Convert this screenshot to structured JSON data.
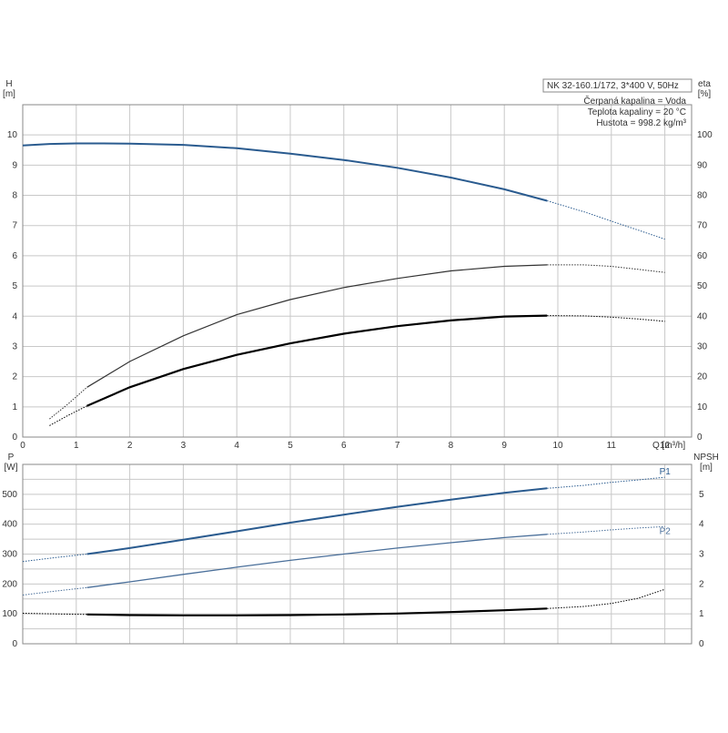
{
  "chart_data": [
    {
      "type": "line",
      "panel": "head-efficiency",
      "info_box": {
        "lines": [
          "NK 32-160.1/172, 3*400 V, 50Hz",
          "Čerpaná kapalina = Voda",
          "Teplota kapaliny = 20 °C",
          "Hustota = 998.2 kg/m³"
        ]
      },
      "ylabel_left": "H\n[m]",
      "ylabel_right": "eta\n[%]",
      "xlabel": "Q [m³/h]",
      "xlim": [
        0,
        12.5
      ],
      "ylim_left": [
        0,
        11
      ],
      "ylim_right": [
        0,
        110
      ],
      "x_ticks": [
        0,
        1,
        2,
        3,
        4,
        5,
        6,
        7,
        8,
        9,
        10,
        11,
        12
      ],
      "y_ticks_left": [
        0,
        1,
        2,
        3,
        4,
        5,
        6,
        7,
        8,
        9,
        10
      ],
      "y_ticks_right": [
        0,
        10,
        20,
        30,
        40,
        50,
        60,
        70,
        80,
        90,
        100
      ],
      "grid": true,
      "series": [
        {
          "color": "#2a5b8f",
          "axis": "left",
          "solid": {
            "x": [
              0,
              0.5,
              1,
              1.5,
              2,
              3,
              4,
              5,
              6,
              7,
              8,
              9,
              9.8
            ],
            "y": [
              9.65,
              9.7,
              9.72,
              9.72,
              9.71,
              9.67,
              9.56,
              9.38,
              9.17,
              8.91,
              8.59,
              8.2,
              7.82
            ]
          },
          "dotted": {
            "x": [
              9.8,
              10.5,
              11,
              11.5,
              12
            ],
            "y": [
              7.82,
              7.45,
              7.15,
              6.85,
              6.55
            ]
          }
        },
        {
          "color": "#333333",
          "axis": "right",
          "solid": {
            "x": [
              1.2,
              2,
              3,
              4,
              5,
              6,
              7,
              8,
              9,
              9.8
            ],
            "y": [
              16.5,
              25,
              33.5,
              40.5,
              45.5,
              49.5,
              52.5,
              55,
              56.5,
              57
            ]
          },
          "dotted": {
            "x": [
              0.5,
              0.85,
              1.2
            ],
            "y": [
              6,
              11,
              16.5
            ]
          },
          "dotted_end": {
            "x": [
              9.8,
              10.5,
              11,
              11.5,
              12
            ],
            "y": [
              57,
              57,
              56.5,
              55.5,
              54.5
            ]
          }
        },
        {
          "color": "#000000",
          "axis": "left",
          "solid": {
            "x": [
              1.2,
              2,
              3,
              4,
              5,
              6,
              7,
              8,
              9,
              9.8
            ],
            "y": [
              1.03,
              1.65,
              2.25,
              2.72,
              3.1,
              3.42,
              3.67,
              3.86,
              3.99,
              4.02
            ]
          },
          "dotted": {
            "x": [
              0.5,
              0.85,
              1.2
            ],
            "y": [
              0.38,
              0.72,
              1.03
            ]
          },
          "dotted_end": {
            "x": [
              9.8,
              10.5,
              11,
              11.5,
              12
            ],
            "y": [
              4.02,
              4.01,
              3.97,
              3.91,
              3.83
            ]
          }
        }
      ]
    },
    {
      "type": "line",
      "panel": "power-npsh",
      "ylabel_left": "P\n[W]",
      "ylabel_right": "NPSH\n[m]",
      "xlim": [
        0,
        12.5
      ],
      "ylim_left": [
        0,
        600
      ],
      "ylim_right": [
        0,
        6
      ],
      "y_ticks_left": [
        0,
        100,
        200,
        300,
        400,
        500
      ],
      "y_ticks_right": [
        0,
        1,
        2,
        3,
        4,
        5
      ],
      "grid": true,
      "series": [
        {
          "name": "P1",
          "color": "#2a5b8f",
          "axis": "left",
          "dotted_start": {
            "x": [
              0,
              0.6,
              1.2
            ],
            "y": [
              275,
              288,
              300
            ]
          },
          "solid": {
            "x": [
              1.2,
              2,
              3,
              4,
              5,
              6,
              7,
              8,
              9,
              9.8
            ],
            "y": [
              300,
              320,
              348,
              376,
              405,
              432,
              458,
              482,
              505,
              520
            ]
          },
          "dotted": {
            "x": [
              9.8,
              10.5,
              11,
              11.5,
              12
            ],
            "y": [
              520,
              530,
              540,
              548,
              557
            ]
          }
        },
        {
          "name": "P2",
          "color": "#4a6f9a",
          "axis": "left",
          "dotted_start": {
            "x": [
              0,
              0.6,
              1.2
            ],
            "y": [
              163,
              176,
              188
            ]
          },
          "solid": {
            "x": [
              1.2,
              2,
              3,
              4,
              5,
              6,
              7,
              8,
              9,
              9.8
            ],
            "y": [
              188,
              207,
              232,
              256,
              279,
              300,
              320,
              338,
              355,
              366
            ]
          },
          "dotted": {
            "x": [
              9.8,
              10.5,
              11,
              11.5,
              12
            ],
            "y": [
              366,
              374,
              381,
              387,
              392
            ]
          }
        },
        {
          "color": "#000000",
          "axis": "right",
          "dotted_start": {
            "x": [
              0,
              0.6,
              1.2
            ],
            "y": [
              1.02,
              1.0,
              0.98
            ]
          },
          "solid": {
            "x": [
              1.2,
              2,
              3,
              4,
              5,
              6,
              7,
              8,
              9,
              9.8
            ],
            "y": [
              0.98,
              0.96,
              0.95,
              0.95,
              0.96,
              0.98,
              1.01,
              1.06,
              1.12,
              1.18
            ]
          },
          "dotted": {
            "x": [
              9.8,
              10.5,
              11,
              11.5,
              12
            ],
            "y": [
              1.18,
              1.25,
              1.35,
              1.52,
              1.82
            ]
          }
        }
      ]
    }
  ]
}
